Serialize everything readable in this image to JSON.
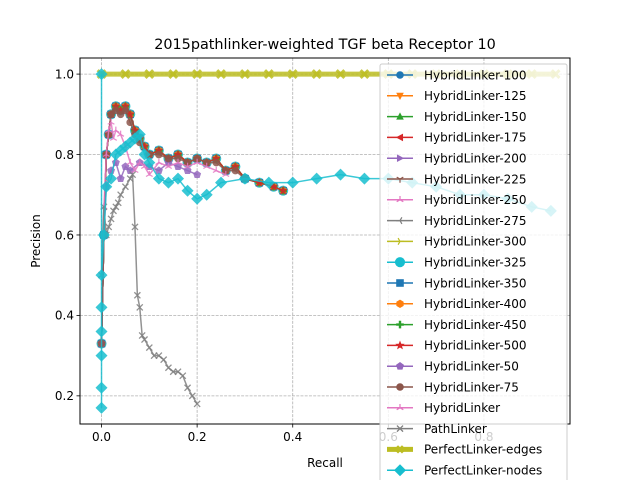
{
  "chart_data": {
    "type": "line",
    "title": "2015pathlinker-weighted TGF beta Receptor 10",
    "xlabel": "Recall",
    "ylabel": "Precision",
    "xlim": [
      -0.045,
      0.98
    ],
    "ylim": [
      0.13,
      1.04
    ],
    "xticks": [
      "0.0",
      "0.2",
      "0.4",
      "0.6",
      "0.8"
    ],
    "xtick_values": [
      0.0,
      0.2,
      0.4,
      0.6,
      0.8
    ],
    "yticks": [
      "0.2",
      "0.4",
      "0.6",
      "0.8",
      "1.0"
    ],
    "ytick_values": [
      0.2,
      0.4,
      0.6,
      0.8,
      1.0
    ],
    "grid": true,
    "legend_position": "right",
    "series": [
      {
        "name": "HybridLinker-100",
        "color": "#1f77b4",
        "marker": "circle",
        "x": [
          0.0,
          0.005,
          0.01,
          0.015,
          0.02,
          0.03,
          0.04,
          0.05,
          0.06,
          0.07,
          0.08,
          0.09,
          0.1,
          0.12,
          0.14,
          0.16,
          0.18,
          0.2,
          0.22,
          0.24,
          0.26,
          0.28,
          0.3,
          0.33,
          0.36,
          0.38
        ],
        "y": [
          0.33,
          0.6,
          0.8,
          0.85,
          0.9,
          0.92,
          0.91,
          0.92,
          0.9,
          0.86,
          0.84,
          0.82,
          0.8,
          0.81,
          0.79,
          0.8,
          0.78,
          0.79,
          0.78,
          0.79,
          0.76,
          0.77,
          0.74,
          0.73,
          0.72,
          0.71
        ]
      },
      {
        "name": "HybridLinker-125",
        "color": "#ff7f0e",
        "marker": "triangle-down",
        "x": [
          0.0,
          0.005,
          0.01,
          0.015,
          0.02,
          0.03,
          0.04,
          0.05,
          0.06,
          0.07,
          0.08,
          0.09,
          0.1,
          0.12,
          0.14,
          0.16,
          0.18,
          0.2,
          0.22,
          0.24,
          0.26,
          0.28,
          0.3,
          0.33,
          0.36,
          0.38
        ],
        "y": [
          0.33,
          0.6,
          0.8,
          0.85,
          0.9,
          0.92,
          0.91,
          0.92,
          0.9,
          0.86,
          0.84,
          0.82,
          0.8,
          0.81,
          0.79,
          0.8,
          0.78,
          0.79,
          0.78,
          0.79,
          0.76,
          0.77,
          0.74,
          0.73,
          0.72,
          0.71
        ]
      },
      {
        "name": "HybridLinker-150",
        "color": "#2ca02c",
        "marker": "triangle-up",
        "x": [
          0.0,
          0.005,
          0.01,
          0.015,
          0.02,
          0.03,
          0.04,
          0.05,
          0.06,
          0.07,
          0.08,
          0.09,
          0.1,
          0.12,
          0.14,
          0.16,
          0.18,
          0.2,
          0.22,
          0.24,
          0.26,
          0.28,
          0.3,
          0.33,
          0.36,
          0.38
        ],
        "y": [
          0.33,
          0.6,
          0.8,
          0.85,
          0.9,
          0.92,
          0.91,
          0.92,
          0.9,
          0.86,
          0.84,
          0.82,
          0.8,
          0.81,
          0.79,
          0.8,
          0.78,
          0.79,
          0.78,
          0.79,
          0.76,
          0.77,
          0.74,
          0.73,
          0.72,
          0.71
        ]
      },
      {
        "name": "HybridLinker-175",
        "color": "#d62728",
        "marker": "triangle-left",
        "x": [
          0.0,
          0.005,
          0.01,
          0.015,
          0.02,
          0.03,
          0.04,
          0.05,
          0.06,
          0.07,
          0.08,
          0.09,
          0.1,
          0.12,
          0.14,
          0.16,
          0.18,
          0.2,
          0.22,
          0.24,
          0.26,
          0.28,
          0.3,
          0.33,
          0.36,
          0.38
        ],
        "y": [
          0.33,
          0.6,
          0.8,
          0.85,
          0.9,
          0.92,
          0.91,
          0.92,
          0.9,
          0.86,
          0.84,
          0.82,
          0.8,
          0.81,
          0.79,
          0.8,
          0.78,
          0.79,
          0.78,
          0.79,
          0.76,
          0.77,
          0.74,
          0.73,
          0.72,
          0.71
        ]
      },
      {
        "name": "HybridLinker-200",
        "color": "#9467bd",
        "marker": "triangle-right",
        "x": [
          0.0,
          0.005,
          0.01,
          0.015,
          0.02,
          0.03,
          0.04,
          0.05,
          0.06,
          0.07,
          0.08,
          0.09,
          0.1,
          0.12,
          0.14,
          0.16,
          0.18,
          0.2,
          0.22,
          0.24,
          0.26,
          0.28,
          0.3,
          0.33,
          0.36,
          0.38
        ],
        "y": [
          0.33,
          0.6,
          0.8,
          0.85,
          0.9,
          0.92,
          0.91,
          0.92,
          0.9,
          0.86,
          0.84,
          0.82,
          0.8,
          0.81,
          0.79,
          0.8,
          0.78,
          0.79,
          0.78,
          0.79,
          0.76,
          0.77,
          0.74,
          0.73,
          0.72,
          0.71
        ]
      },
      {
        "name": "HybridLinker-225",
        "color": "#8c564b",
        "marker": "tri-down",
        "x": [
          0.0,
          0.005,
          0.01,
          0.015,
          0.02,
          0.03,
          0.04,
          0.05,
          0.06,
          0.07,
          0.08,
          0.09,
          0.1,
          0.12,
          0.14,
          0.16,
          0.18,
          0.2,
          0.22,
          0.24,
          0.26,
          0.28,
          0.3,
          0.33,
          0.36,
          0.38
        ],
        "y": [
          0.33,
          0.6,
          0.8,
          0.85,
          0.9,
          0.92,
          0.91,
          0.92,
          0.9,
          0.86,
          0.84,
          0.82,
          0.8,
          0.81,
          0.79,
          0.8,
          0.78,
          0.79,
          0.78,
          0.79,
          0.76,
          0.77,
          0.74,
          0.73,
          0.72,
          0.71
        ]
      },
      {
        "name": "HybridLinker-250",
        "color": "#e377c2",
        "marker": "tri-up",
        "x": [
          0.0,
          0.005,
          0.01,
          0.015,
          0.02,
          0.03,
          0.04,
          0.05,
          0.06,
          0.07,
          0.08,
          0.09,
          0.1,
          0.12,
          0.14,
          0.16,
          0.18,
          0.2,
          0.22,
          0.24,
          0.26,
          0.28,
          0.3,
          0.33,
          0.36,
          0.38
        ],
        "y": [
          0.33,
          0.6,
          0.8,
          0.85,
          0.9,
          0.92,
          0.91,
          0.92,
          0.9,
          0.86,
          0.84,
          0.82,
          0.8,
          0.81,
          0.79,
          0.8,
          0.78,
          0.79,
          0.78,
          0.79,
          0.76,
          0.77,
          0.74,
          0.73,
          0.72,
          0.71
        ]
      },
      {
        "name": "HybridLinker-275",
        "color": "#7f7f7f",
        "marker": "tri-left",
        "x": [
          0.0,
          0.005,
          0.01,
          0.015,
          0.02,
          0.03,
          0.04,
          0.05,
          0.06,
          0.07,
          0.08,
          0.09,
          0.1,
          0.12,
          0.14,
          0.16,
          0.18,
          0.2,
          0.22,
          0.24,
          0.26,
          0.28,
          0.3,
          0.33,
          0.36,
          0.38
        ],
        "y": [
          0.33,
          0.6,
          0.8,
          0.85,
          0.9,
          0.92,
          0.91,
          0.92,
          0.9,
          0.86,
          0.84,
          0.82,
          0.8,
          0.81,
          0.79,
          0.8,
          0.78,
          0.79,
          0.78,
          0.79,
          0.76,
          0.77,
          0.74,
          0.73,
          0.72,
          0.71
        ]
      },
      {
        "name": "HybridLinker-300",
        "color": "#bcbd22",
        "marker": "tri-right",
        "x": [
          0.0,
          0.005,
          0.01,
          0.015,
          0.02,
          0.03,
          0.04,
          0.05,
          0.06,
          0.07,
          0.08,
          0.09,
          0.1,
          0.12,
          0.14,
          0.16,
          0.18,
          0.2,
          0.22,
          0.24,
          0.26,
          0.28,
          0.3,
          0.33,
          0.36,
          0.38
        ],
        "y": [
          0.33,
          0.6,
          0.8,
          0.85,
          0.9,
          0.92,
          0.91,
          0.92,
          0.9,
          0.86,
          0.84,
          0.82,
          0.8,
          0.81,
          0.79,
          0.8,
          0.78,
          0.79,
          0.78,
          0.79,
          0.76,
          0.77,
          0.74,
          0.73,
          0.72,
          0.71
        ]
      },
      {
        "name": "HybridLinker-325",
        "color": "#17becf",
        "marker": "octagon",
        "x": [
          0.0,
          0.005,
          0.01,
          0.015,
          0.02,
          0.03,
          0.04,
          0.05,
          0.06,
          0.07,
          0.08,
          0.09,
          0.1,
          0.12,
          0.14,
          0.16,
          0.18,
          0.2,
          0.22,
          0.24,
          0.26,
          0.28,
          0.3,
          0.33,
          0.36,
          0.38
        ],
        "y": [
          0.33,
          0.6,
          0.8,
          0.85,
          0.9,
          0.92,
          0.91,
          0.92,
          0.9,
          0.86,
          0.84,
          0.82,
          0.8,
          0.81,
          0.79,
          0.8,
          0.78,
          0.79,
          0.78,
          0.79,
          0.76,
          0.77,
          0.74,
          0.73,
          0.72,
          0.71
        ]
      },
      {
        "name": "HybridLinker-350",
        "color": "#1f77b4",
        "marker": "square",
        "x": [
          0.0,
          0.005,
          0.01,
          0.015,
          0.02,
          0.03,
          0.04,
          0.05,
          0.06,
          0.07,
          0.08,
          0.09,
          0.1,
          0.12,
          0.14,
          0.16,
          0.18,
          0.2,
          0.22,
          0.24,
          0.26,
          0.28,
          0.3,
          0.33,
          0.36,
          0.38
        ],
        "y": [
          0.33,
          0.6,
          0.8,
          0.85,
          0.9,
          0.92,
          0.91,
          0.92,
          0.9,
          0.86,
          0.84,
          0.82,
          0.8,
          0.81,
          0.79,
          0.8,
          0.78,
          0.79,
          0.78,
          0.79,
          0.76,
          0.77,
          0.74,
          0.73,
          0.72,
          0.71
        ]
      },
      {
        "name": "HybridLinker-400",
        "color": "#ff7f0e",
        "marker": "hexagon",
        "x": [
          0.0,
          0.005,
          0.01,
          0.015,
          0.02,
          0.03,
          0.04,
          0.05,
          0.06,
          0.07,
          0.08,
          0.09,
          0.1,
          0.12,
          0.14,
          0.16,
          0.18,
          0.2,
          0.22,
          0.24,
          0.26,
          0.28,
          0.3,
          0.33,
          0.36,
          0.38
        ],
        "y": [
          0.33,
          0.6,
          0.8,
          0.85,
          0.9,
          0.92,
          0.91,
          0.92,
          0.9,
          0.86,
          0.84,
          0.82,
          0.8,
          0.81,
          0.79,
          0.8,
          0.78,
          0.79,
          0.78,
          0.79,
          0.76,
          0.77,
          0.74,
          0.73,
          0.72,
          0.71
        ]
      },
      {
        "name": "HybridLinker-450",
        "color": "#2ca02c",
        "marker": "plus",
        "x": [
          0.0,
          0.005,
          0.01,
          0.015,
          0.02,
          0.03,
          0.04,
          0.05,
          0.06,
          0.07,
          0.08,
          0.09,
          0.1,
          0.12,
          0.14,
          0.16,
          0.18,
          0.2,
          0.22,
          0.24,
          0.26,
          0.28,
          0.3,
          0.33,
          0.36,
          0.38
        ],
        "y": [
          0.33,
          0.6,
          0.8,
          0.85,
          0.9,
          0.92,
          0.91,
          0.92,
          0.9,
          0.86,
          0.84,
          0.82,
          0.8,
          0.81,
          0.79,
          0.8,
          0.78,
          0.79,
          0.78,
          0.79,
          0.76,
          0.77,
          0.74,
          0.73,
          0.72,
          0.71
        ]
      },
      {
        "name": "HybridLinker-500",
        "color": "#d62728",
        "marker": "star",
        "x": [
          0.0,
          0.005,
          0.01,
          0.015,
          0.02,
          0.03,
          0.04,
          0.05,
          0.06,
          0.07,
          0.08,
          0.09,
          0.1,
          0.12,
          0.14,
          0.16,
          0.18,
          0.2,
          0.22,
          0.24,
          0.26,
          0.28,
          0.3,
          0.33,
          0.36,
          0.38
        ],
        "y": [
          0.33,
          0.6,
          0.8,
          0.85,
          0.9,
          0.92,
          0.91,
          0.92,
          0.9,
          0.86,
          0.84,
          0.82,
          0.8,
          0.81,
          0.79,
          0.8,
          0.78,
          0.79,
          0.78,
          0.79,
          0.76,
          0.77,
          0.74,
          0.73,
          0.72,
          0.71
        ]
      },
      {
        "name": "HybridLinker-50",
        "color": "#9467bd",
        "marker": "pentagon",
        "x": [
          0.0,
          0.005,
          0.01,
          0.02,
          0.03,
          0.04,
          0.05,
          0.06,
          0.08,
          0.1,
          0.12,
          0.14,
          0.16,
          0.18,
          0.2
        ],
        "y": [
          0.33,
          0.6,
          0.72,
          0.76,
          0.78,
          0.74,
          0.77,
          0.76,
          0.78,
          0.77,
          0.76,
          0.78,
          0.77,
          0.76,
          0.75
        ]
      },
      {
        "name": "HybridLinker-75",
        "color": "#8c564b",
        "marker": "circle",
        "x": [
          0.0,
          0.005,
          0.01,
          0.015,
          0.02,
          0.03,
          0.04,
          0.05,
          0.06,
          0.07,
          0.08,
          0.1,
          0.12,
          0.14,
          0.16,
          0.18,
          0.2,
          0.22,
          0.24,
          0.26,
          0.28,
          0.3
        ],
        "y": [
          0.33,
          0.6,
          0.8,
          0.85,
          0.9,
          0.91,
          0.9,
          0.91,
          0.88,
          0.85,
          0.83,
          0.8,
          0.8,
          0.79,
          0.79,
          0.78,
          0.79,
          0.78,
          0.78,
          0.76,
          0.76,
          0.74
        ]
      },
      {
        "name": "HybridLinker",
        "color": "#e377c2",
        "marker": "tri-up",
        "x": [
          0.0,
          0.005,
          0.01,
          0.015,
          0.02,
          0.025,
          0.03,
          0.04,
          0.05,
          0.06,
          0.07,
          0.08,
          0.09,
          0.1,
          0.12,
          0.14,
          0.16,
          0.18,
          0.2,
          0.22,
          0.24,
          0.26
        ],
        "y": [
          0.5,
          0.67,
          0.8,
          0.86,
          0.88,
          0.84,
          0.86,
          0.85,
          0.82,
          0.78,
          0.76,
          0.78,
          0.77,
          0.75,
          0.78,
          0.77,
          0.78,
          0.77,
          0.78,
          0.77,
          0.76,
          0.75
        ]
      },
      {
        "name": "PathLinker",
        "color": "#7f7f7f",
        "marker": "x",
        "x": [
          0.0,
          0.005,
          0.01,
          0.015,
          0.02,
          0.025,
          0.03,
          0.035,
          0.04,
          0.05,
          0.06,
          0.065,
          0.07,
          0.075,
          0.08,
          0.085,
          0.09,
          0.1,
          0.11,
          0.12,
          0.13,
          0.14,
          0.15,
          0.16,
          0.17,
          0.18,
          0.19,
          0.2
        ],
        "y": [
          0.5,
          0.67,
          0.6,
          0.62,
          0.64,
          0.66,
          0.67,
          0.68,
          0.7,
          0.72,
          0.74,
          0.75,
          0.62,
          0.45,
          0.42,
          0.35,
          0.34,
          0.32,
          0.3,
          0.3,
          0.29,
          0.27,
          0.26,
          0.26,
          0.25,
          0.22,
          0.2,
          0.18
        ]
      },
      {
        "name": "PerfectLinker-edges",
        "color": "#bcbd22",
        "marker": "x-thick",
        "x": [
          0.0,
          0.05,
          0.1,
          0.15,
          0.2,
          0.25,
          0.3,
          0.35,
          0.4,
          0.45,
          0.5,
          0.55,
          0.6,
          0.65,
          0.7,
          0.75,
          0.8,
          0.85,
          0.9,
          0.95
        ],
        "y": [
          1.0,
          1.0,
          1.0,
          1.0,
          1.0,
          1.0,
          1.0,
          1.0,
          1.0,
          1.0,
          1.0,
          1.0,
          1.0,
          1.0,
          1.0,
          1.0,
          1.0,
          1.0,
          1.0,
          1.0
        ]
      },
      {
        "name": "PerfectLinker-nodes",
        "color": "#17becf",
        "marker": "diamond",
        "x": [
          0.0,
          0.0,
          0.0,
          0.0,
          0.0,
          0.0,
          0.0,
          0.005,
          0.01,
          0.02,
          0.03,
          0.04,
          0.05,
          0.06,
          0.07,
          0.08,
          0.09,
          0.1,
          0.12,
          0.14,
          0.16,
          0.18,
          0.2,
          0.22,
          0.25,
          0.3,
          0.35,
          0.4,
          0.45,
          0.5,
          0.55,
          0.6,
          0.65,
          0.7,
          0.75,
          0.8,
          0.85,
          0.9,
          0.94
        ],
        "y": [
          1.0,
          0.17,
          0.22,
          0.3,
          0.36,
          0.42,
          0.5,
          0.6,
          0.72,
          0.74,
          0.8,
          0.81,
          0.82,
          0.83,
          0.84,
          0.85,
          0.8,
          0.78,
          0.74,
          0.73,
          0.74,
          0.71,
          0.69,
          0.7,
          0.73,
          0.74,
          0.73,
          0.73,
          0.74,
          0.75,
          0.74,
          0.74,
          0.73,
          0.72,
          0.7,
          0.7,
          0.69,
          0.67,
          0.66
        ]
      }
    ]
  }
}
